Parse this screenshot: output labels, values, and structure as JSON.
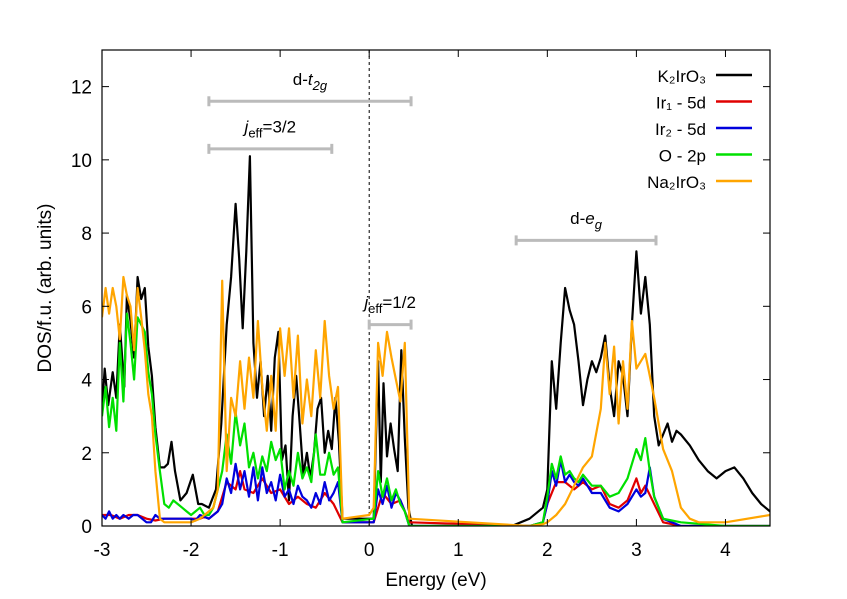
{
  "chart_data": {
    "type": "line",
    "xlabel": "Energy (eV)",
    "ylabel": "DOS/f.u. (arb. units)",
    "xlim": [
      -3,
      4.5
    ],
    "ylim": [
      0,
      13
    ],
    "xticks": [
      -3,
      -2,
      -1,
      0,
      1,
      2,
      3,
      4
    ],
    "yticks": [
      0,
      2,
      4,
      6,
      8,
      10,
      12
    ],
    "grid": false,
    "legend_position": "top-right",
    "fermi_level": 0,
    "series": [
      {
        "name": "K₂IrO₃",
        "color": "#000000",
        "x": [
          -3,
          -2.97,
          -2.93,
          -2.88,
          -2.84,
          -2.8,
          -2.75,
          -2.72,
          -2.68,
          -2.64,
          -2.6,
          -2.56,
          -2.52,
          -2.48,
          -2.44,
          -2.4,
          -2.35,
          -2.3,
          -2.26,
          -2.22,
          -2.18,
          -2.12,
          -2.05,
          -1.98,
          -1.92,
          -1.88,
          -1.8,
          -1.72,
          -1.66,
          -1.6,
          -1.55,
          -1.5,
          -1.46,
          -1.42,
          -1.38,
          -1.34,
          -1.3,
          -1.26,
          -1.22,
          -1.18,
          -1.14,
          -1.1,
          -1.06,
          -1.02,
          -0.98,
          -0.94,
          -0.9,
          -0.86,
          -0.82,
          -0.78,
          -0.74,
          -0.7,
          -0.66,
          -0.62,
          -0.58,
          -0.54,
          -0.5,
          -0.46,
          -0.42,
          -0.38,
          -0.34,
          -0.3,
          0.05,
          0.1,
          0.13,
          0.16,
          0.2,
          0.24,
          0.28,
          0.32,
          0.36,
          0.4,
          0.44,
          0.48,
          1.6,
          1.8,
          1.95,
          2.0,
          2.05,
          2.1,
          2.15,
          2.2,
          2.25,
          2.3,
          2.35,
          2.4,
          2.45,
          2.5,
          2.55,
          2.6,
          2.65,
          2.7,
          2.75,
          2.8,
          2.85,
          2.9,
          2.95,
          3.0,
          3.05,
          3.1,
          3.15,
          3.2,
          3.25,
          3.3,
          3.35,
          3.4,
          3.45,
          3.5,
          3.6,
          3.7,
          3.8,
          3.9,
          4.0,
          4.1,
          4.2,
          4.3,
          4.4,
          4.5
        ],
        "y": [
          3.2,
          4.3,
          3.3,
          4.2,
          3.5,
          5.5,
          3.8,
          6.3,
          5.6,
          4.6,
          6.8,
          6.2,
          6.5,
          4.9,
          4.1,
          2.7,
          1.6,
          1.6,
          1.7,
          2.3,
          1.5,
          0.7,
          0.9,
          1.4,
          0.6,
          0.6,
          0.5,
          1.0,
          2.8,
          5.5,
          6.8,
          8.8,
          7.3,
          5.4,
          7.5,
          10.1,
          5.0,
          3.5,
          4.5,
          3.0,
          4.1,
          2.6,
          4.6,
          5.3,
          1.8,
          2.2,
          0.7,
          3.0,
          4.1,
          2.8,
          1.4,
          2.0,
          1.3,
          2.0,
          3.2,
          3.5,
          2.0,
          2.6,
          2.1,
          3.5,
          2.3,
          0.2,
          0.2,
          4.5,
          1.2,
          3.9,
          1.9,
          2.8,
          2.1,
          1.5,
          4.8,
          2.4,
          0.5,
          0.0,
          0.0,
          0.2,
          0.5,
          1.0,
          4.5,
          3.2,
          5.0,
          6.5,
          5.9,
          5.5,
          4.5,
          3.3,
          4.0,
          4.5,
          4.2,
          4.6,
          5.2,
          3.8,
          3.0,
          4.5,
          4.1,
          3.0,
          5.5,
          7.5,
          5.8,
          6.8,
          5.5,
          3.0,
          2.2,
          2.5,
          2.8,
          2.3,
          2.6,
          2.5,
          2.2,
          1.8,
          1.5,
          1.3,
          1.5,
          1.6,
          1.3,
          0.9,
          0.6,
          0.4
        ]
      },
      {
        "name": "Ir₁ - 5d",
        "color": "#e00000",
        "x": [
          -3,
          -2.9,
          -2.8,
          -2.7,
          -2.6,
          -2.5,
          -2.4,
          -2.3,
          -2.2,
          -2.1,
          -2.0,
          -1.9,
          -1.85,
          -1.8,
          -1.7,
          -1.6,
          -1.5,
          -1.45,
          -1.4,
          -1.3,
          -1.2,
          -1.1,
          -1.0,
          -0.9,
          -0.8,
          -0.7,
          -0.6,
          -0.5,
          -0.4,
          -0.3,
          0.05,
          0.15,
          0.25,
          0.35,
          0.45,
          1.8,
          1.95,
          2.0,
          2.1,
          2.2,
          2.3,
          2.4,
          2.5,
          2.6,
          2.7,
          2.8,
          2.9,
          3.0,
          3.05,
          3.1,
          3.2,
          3.3,
          3.5,
          4.0,
          4.5
        ],
        "y": [
          0.3,
          0.3,
          0.2,
          0.3,
          0.3,
          0.2,
          0.15,
          0.2,
          0.2,
          0.2,
          0.2,
          0.2,
          0.25,
          0.2,
          0.4,
          1.2,
          1.0,
          1.5,
          1.0,
          0.9,
          1.3,
          0.9,
          1.0,
          0.6,
          0.8,
          0.6,
          0.5,
          0.9,
          0.6,
          0.1,
          0.1,
          0.9,
          0.6,
          0.7,
          0.1,
          0.0,
          0.1,
          0.6,
          1.2,
          1.2,
          1.0,
          1.2,
          1.0,
          1.1,
          0.6,
          0.5,
          0.7,
          1.3,
          0.9,
          1.1,
          0.6,
          0.1,
          0.0,
          0.0,
          0.0
        ]
      },
      {
        "name": "Ir₂ - 5d",
        "color": "#0000dd",
        "x": [
          -3,
          -2.96,
          -2.92,
          -2.88,
          -2.84,
          -2.8,
          -2.76,
          -2.7,
          -2.65,
          -2.6,
          -2.55,
          -2.5,
          -2.45,
          -2.4,
          -2.35,
          -2.3,
          -2.2,
          -2.1,
          -2.0,
          -1.95,
          -1.9,
          -1.8,
          -1.7,
          -1.65,
          -1.6,
          -1.55,
          -1.5,
          -1.45,
          -1.4,
          -1.35,
          -1.3,
          -1.25,
          -1.2,
          -1.15,
          -1.1,
          -1.05,
          -1.0,
          -0.95,
          -0.9,
          -0.85,
          -0.8,
          -0.75,
          -0.7,
          -0.65,
          -0.6,
          -0.55,
          -0.5,
          -0.45,
          -0.4,
          -0.35,
          -0.3,
          0.05,
          0.1,
          0.15,
          0.2,
          0.25,
          0.3,
          0.35,
          0.4,
          0.45,
          1.8,
          1.95,
          2.0,
          2.05,
          2.1,
          2.15,
          2.2,
          2.25,
          2.3,
          2.35,
          2.4,
          2.5,
          2.6,
          2.7,
          2.8,
          2.9,
          3.0,
          3.05,
          3.1,
          3.15,
          3.2,
          3.3,
          3.5,
          4.0,
          4.5
        ],
        "y": [
          0.3,
          0.2,
          0.4,
          0.2,
          0.3,
          0.2,
          0.3,
          0.2,
          0.3,
          0.3,
          0.2,
          0.1,
          0.1,
          0.3,
          0.2,
          0.2,
          0.2,
          0.2,
          0.2,
          0.15,
          0.3,
          0.2,
          0.4,
          0.6,
          1.3,
          0.9,
          1.7,
          1.0,
          1.5,
          0.8,
          1.6,
          0.7,
          1.6,
          0.9,
          1.2,
          0.7,
          1.4,
          0.8,
          1.0,
          0.6,
          1.1,
          0.8,
          0.7,
          0.5,
          0.9,
          0.6,
          1.2,
          0.7,
          0.9,
          1.2,
          0.1,
          0.1,
          1.0,
          0.6,
          1.1,
          0.5,
          0.9,
          0.7,
          0.4,
          0.0,
          0.0,
          0.1,
          0.6,
          1.5,
          1.1,
          1.8,
          1.2,
          1.4,
          1.2,
          1.1,
          1.3,
          0.9,
          0.9,
          0.5,
          0.4,
          0.6,
          1.0,
          0.8,
          0.9,
          1.6,
          0.8,
          0.2,
          0.0,
          0.0,
          0.0
        ]
      },
      {
        "name": "O - 2p",
        "color": "#00e000",
        "x": [
          -3,
          -2.96,
          -2.92,
          -2.88,
          -2.84,
          -2.8,
          -2.76,
          -2.72,
          -2.68,
          -2.64,
          -2.6,
          -2.56,
          -2.52,
          -2.48,
          -2.44,
          -2.4,
          -2.35,
          -2.3,
          -2.25,
          -2.2,
          -2.15,
          -2.1,
          -2.05,
          -2.0,
          -1.95,
          -1.9,
          -1.85,
          -1.8,
          -1.75,
          -1.7,
          -1.65,
          -1.6,
          -1.55,
          -1.5,
          -1.45,
          -1.4,
          -1.35,
          -1.3,
          -1.25,
          -1.2,
          -1.15,
          -1.1,
          -1.05,
          -1.0,
          -0.95,
          -0.9,
          -0.85,
          -0.8,
          -0.75,
          -0.7,
          -0.65,
          -0.6,
          -0.55,
          -0.5,
          -0.45,
          -0.4,
          -0.35,
          -0.3,
          0.05,
          0.1,
          0.15,
          0.2,
          0.25,
          0.3,
          0.35,
          0.4,
          0.45,
          1.8,
          1.95,
          2.0,
          2.05,
          2.1,
          2.15,
          2.2,
          2.25,
          2.3,
          2.35,
          2.4,
          2.5,
          2.6,
          2.7,
          2.8,
          2.9,
          3.0,
          3.05,
          3.1,
          3.15,
          3.2,
          3.3,
          3.5,
          4.0,
          4.5
        ],
        "y": [
          3.0,
          3.8,
          2.7,
          3.5,
          2.6,
          5.0,
          3.4,
          5.8,
          5.0,
          4.0,
          5.7,
          5.5,
          5.3,
          4.2,
          3.6,
          2.5,
          1.5,
          0.6,
          0.5,
          0.7,
          0.6,
          0.5,
          0.4,
          0.3,
          0.4,
          0.5,
          0.3,
          0.3,
          0.5,
          1.0,
          1.5,
          2.5,
          1.7,
          3.1,
          2.2,
          2.8,
          1.6,
          2.0,
          1.3,
          1.9,
          1.5,
          2.3,
          1.8,
          2.1,
          1.0,
          1.5,
          1.1,
          2.0,
          1.3,
          1.6,
          1.2,
          2.5,
          1.4,
          1.4,
          2.0,
          1.4,
          1.6,
          0.1,
          0.2,
          1.5,
          0.8,
          1.3,
          0.7,
          1.0,
          0.6,
          0.4,
          0.0,
          0.0,
          0.1,
          0.8,
          1.7,
          1.3,
          1.9,
          1.4,
          1.5,
          1.3,
          1.2,
          1.4,
          1.1,
          1.1,
          0.8,
          0.9,
          1.3,
          2.1,
          1.8,
          2.4,
          1.5,
          0.8,
          0.2,
          0.1,
          0.0,
          0.0
        ]
      },
      {
        "name": "Na₂IrO₃",
        "color": "#ffa500",
        "x": [
          -3,
          -2.96,
          -2.92,
          -2.88,
          -2.84,
          -2.8,
          -2.76,
          -2.72,
          -2.68,
          -2.64,
          -2.6,
          -2.56,
          -2.52,
          -2.48,
          -2.44,
          -2.4,
          -2.35,
          -2.3,
          -2.25,
          -2.2,
          -2.1,
          -2.0,
          -1.9,
          -1.8,
          -1.75,
          -1.7,
          -1.65,
          -1.6,
          -1.55,
          -1.5,
          -1.45,
          -1.4,
          -1.35,
          -1.3,
          -1.25,
          -1.2,
          -1.15,
          -1.1,
          -1.05,
          -1.0,
          -0.95,
          -0.9,
          -0.85,
          -0.8,
          -0.75,
          -0.7,
          -0.65,
          -0.6,
          -0.55,
          -0.5,
          -0.45,
          -0.4,
          -0.35,
          -0.3,
          0.0,
          0.05,
          0.1,
          0.15,
          0.2,
          0.25,
          0.3,
          0.35,
          0.4,
          0.45,
          1.8,
          1.95,
          2.0,
          2.1,
          2.2,
          2.3,
          2.4,
          2.5,
          2.6,
          2.65,
          2.7,
          2.75,
          2.8,
          2.85,
          2.9,
          2.95,
          3.0,
          3.05,
          3.1,
          3.15,
          3.2,
          3.3,
          3.4,
          3.5,
          3.6,
          3.7,
          4.0,
          4.5
        ],
        "y": [
          5.7,
          6.5,
          5.8,
          6.5,
          6.0,
          5.1,
          6.8,
          6.3,
          6.0,
          4.8,
          6.5,
          5.7,
          4.8,
          3.6,
          3.0,
          1.5,
          0.2,
          0.1,
          0.1,
          0.1,
          0.1,
          0.1,
          0.2,
          0.4,
          0.5,
          1.0,
          6.7,
          1.5,
          3.5,
          3.0,
          4.5,
          3.2,
          4.6,
          3.5,
          5.6,
          3.8,
          2.6,
          4.1,
          2.6,
          5.4,
          4.1,
          5.4,
          3.5,
          5.2,
          2.8,
          4.0,
          3.0,
          4.8,
          3.5,
          5.6,
          4.1,
          3.2,
          3.8,
          0.2,
          0.3,
          0.5,
          5.0,
          4.1,
          5.3,
          4.6,
          4.0,
          3.4,
          5.0,
          0.2,
          0.0,
          0.05,
          0.1,
          0.3,
          0.6,
          1.1,
          1.6,
          1.9,
          3.2,
          5.0,
          3.6,
          4.9,
          2.8,
          4.5,
          3.2,
          5.6,
          4.3,
          4.5,
          4.7,
          4.1,
          3.5,
          2.1,
          1.5,
          0.5,
          0.2,
          0.1,
          0.1,
          0.3
        ]
      }
    ],
    "annotations": [
      {
        "prefix": "d-",
        "italic": "t",
        "sub": "2g",
        "sub_italic": true,
        "suffix": "",
        "bar": [
          -1.8,
          0.47
        ],
        "y_bar": 11.6,
        "y_text": 12.05
      },
      {
        "prefix": "",
        "italic": "j",
        "sub": "eff",
        "sub_italic": false,
        "suffix": "=3/2",
        "bar": [
          -1.8,
          -0.42
        ],
        "y_bar": 10.3,
        "y_text": 10.75
      },
      {
        "prefix": "",
        "italic": "j",
        "sub": "eff",
        "sub_italic": false,
        "suffix": "=1/2",
        "bar": [
          0.0,
          0.47
        ],
        "y_bar": 5.5,
        "y_text": 5.95
      },
      {
        "prefix": "d-",
        "italic": "e",
        "sub": "g",
        "sub_italic": true,
        "suffix": "",
        "bar": [
          1.65,
          3.22
        ],
        "y_bar": 7.8,
        "y_text": 8.25
      }
    ]
  }
}
